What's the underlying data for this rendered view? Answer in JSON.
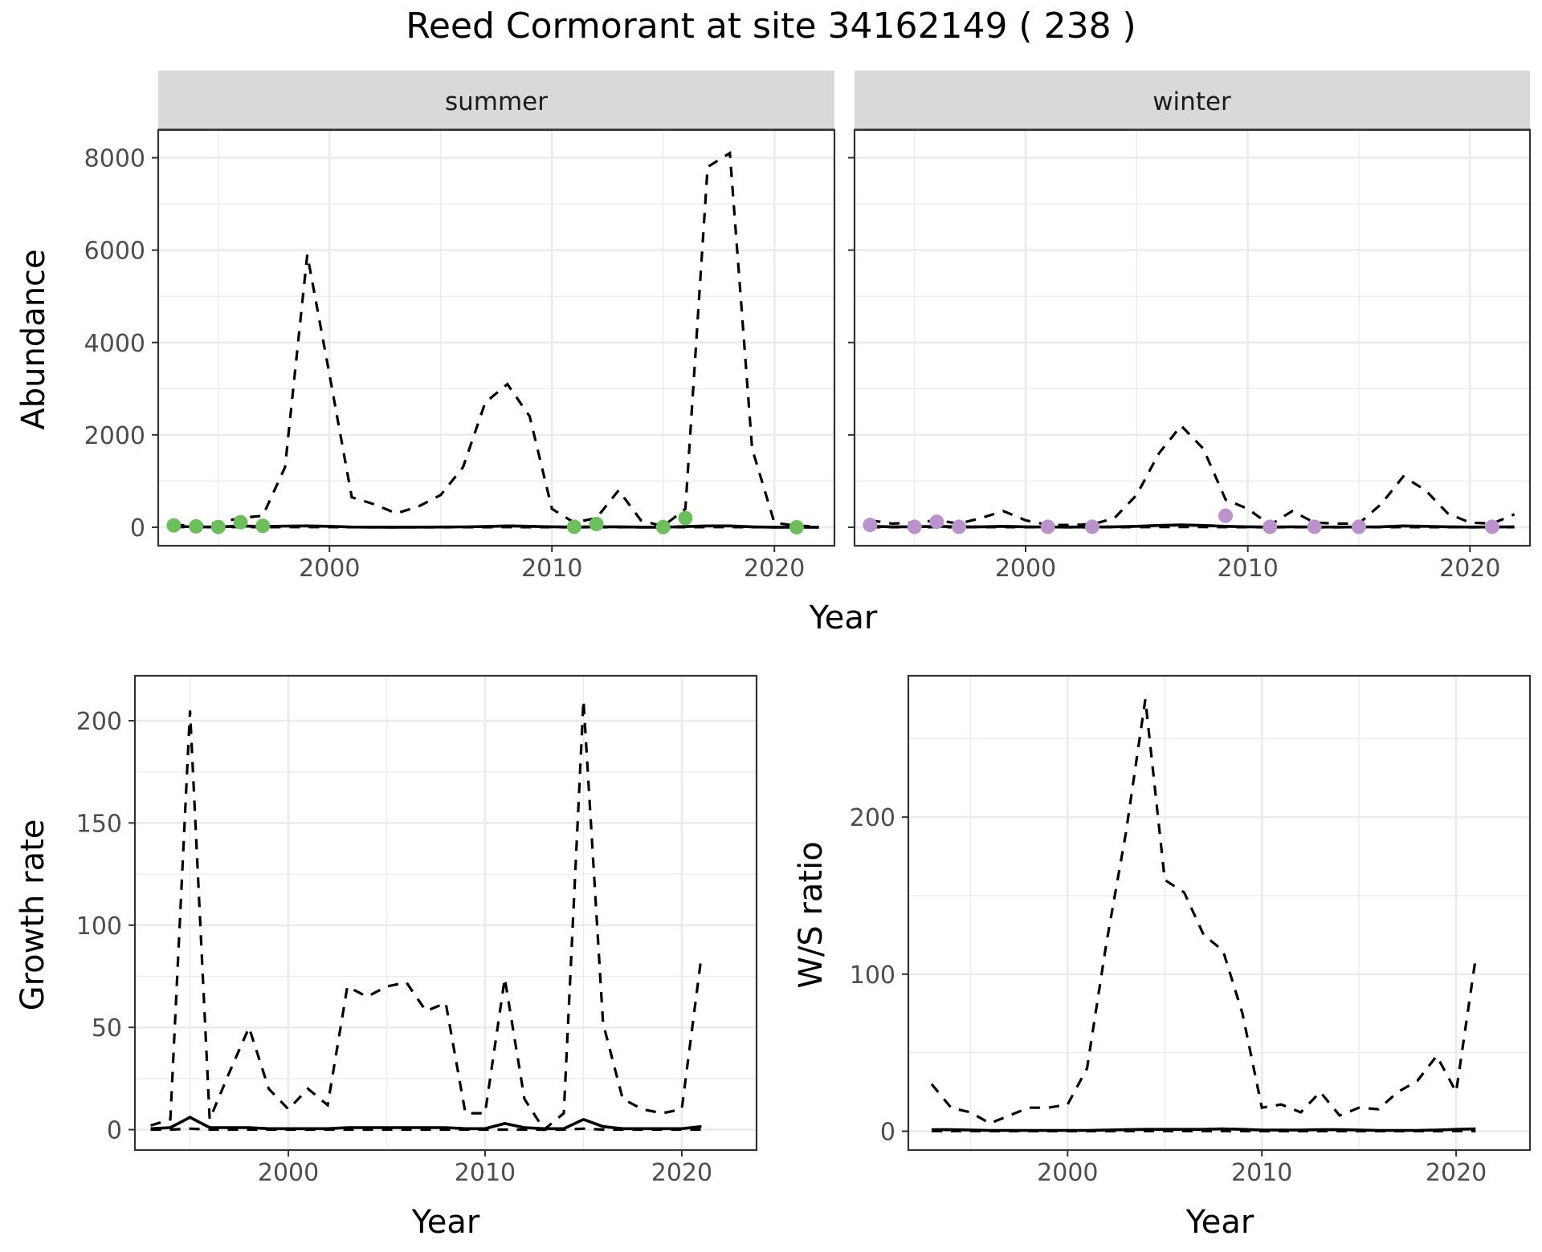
{
  "title": "Reed Cormorant at site 34162149 ( 238 )",
  "colors": {
    "summer_points": "#6cbf5b",
    "winter_points": "#bb92cb",
    "lines": "#000000"
  },
  "chart_data": [
    {
      "id": "summer",
      "type": "line",
      "facet": "summer",
      "xlabel": "Year",
      "ylabel": "Abundance",
      "xlim": [
        1992.3,
        2022.7
      ],
      "ylim": [
        -400,
        8600
      ],
      "xticks": [
        2000,
        2010,
        2020
      ],
      "xminor": [
        1995,
        2005,
        2015
      ],
      "yticks": [
        0,
        2000,
        4000,
        6000,
        8000
      ],
      "yminor": [
        1000,
        3000,
        5000,
        7000
      ],
      "grid": true,
      "legend": "none",
      "x": [
        1993,
        1994,
        1995,
        1996,
        1997,
        1998,
        1999,
        2000,
        2001,
        2002,
        2003,
        2004,
        2005,
        2006,
        2007,
        2008,
        2009,
        2010,
        2011,
        2012,
        2013,
        2014,
        2015,
        2016,
        2017,
        2018,
        2019,
        2020,
        2021,
        2022
      ],
      "series": [
        {
          "role": "upper",
          "style": "dashed",
          "values": [
            60,
            20,
            100,
            200,
            250,
            1300,
            5900,
            3300,
            650,
            500,
            300,
            450,
            700,
            1300,
            2700,
            3100,
            2400,
            400,
            100,
            200,
            800,
            150,
            20,
            400,
            7800,
            8100,
            1700,
            100,
            30,
            20
          ]
        },
        {
          "role": "mean",
          "style": "solid",
          "values": [
            20,
            8,
            5,
            30,
            15,
            25,
            30,
            20,
            5,
            3,
            2,
            3,
            4,
            8,
            15,
            30,
            20,
            10,
            5,
            10,
            10,
            3,
            2,
            15,
            30,
            30,
            10,
            2,
            1,
            1
          ]
        },
        {
          "role": "lower",
          "style": "dashed",
          "values": [
            5,
            2,
            1,
            5,
            2,
            3,
            3,
            3,
            1,
            0,
            0,
            0,
            0,
            1,
            2,
            3,
            2,
            1,
            0,
            1,
            1,
            0,
            0,
            2,
            3,
            3,
            1,
            0,
            0,
            0
          ]
        }
      ],
      "points": {
        "x": [
          1993,
          1994,
          1995,
          1996,
          1997,
          2011,
          2012,
          2015,
          2016,
          2021
        ],
        "y": [
          40,
          20,
          5,
          110,
          30,
          10,
          70,
          5,
          200,
          0
        ]
      }
    },
    {
      "id": "winter",
      "type": "line",
      "facet": "winter",
      "xlabel": "Year",
      "ylabel": "Abundance",
      "xlim": [
        1992.3,
        2022.7
      ],
      "ylim": [
        -400,
        8600
      ],
      "xticks": [
        2000,
        2010,
        2020
      ],
      "xminor": [
        1995,
        2005,
        2015
      ],
      "yticks": [
        0,
        2000,
        4000,
        6000,
        8000
      ],
      "yminor": [
        1000,
        3000,
        5000,
        7000
      ],
      "grid": true,
      "legend": "none",
      "x": [
        1993,
        1994,
        1995,
        1996,
        1997,
        1998,
        1999,
        2000,
        2001,
        2002,
        2003,
        2004,
        2005,
        2006,
        2007,
        2008,
        2009,
        2010,
        2011,
        2012,
        2013,
        2014,
        2015,
        2016,
        2017,
        2018,
        2019,
        2020,
        2021,
        2022
      ],
      "series": [
        {
          "role": "upper",
          "style": "dashed",
          "values": [
            150,
            80,
            100,
            150,
            80,
            200,
            350,
            150,
            50,
            50,
            60,
            200,
            700,
            1600,
            2200,
            1700,
            600,
            400,
            50,
            350,
            100,
            80,
            80,
            500,
            1100,
            800,
            300,
            100,
            80,
            280
          ]
        },
        {
          "role": "mean",
          "style": "solid",
          "values": [
            20,
            10,
            10,
            20,
            10,
            10,
            20,
            10,
            5,
            5,
            5,
            10,
            20,
            40,
            50,
            40,
            20,
            10,
            5,
            10,
            5,
            5,
            5,
            10,
            30,
            20,
            10,
            5,
            5,
            10
          ]
        },
        {
          "role": "lower",
          "style": "dashed",
          "values": [
            3,
            1,
            1,
            3,
            1,
            1,
            3,
            1,
            0,
            0,
            0,
            1,
            3,
            5,
            6,
            5,
            3,
            1,
            0,
            1,
            0,
            0,
            0,
            1,
            3,
            2,
            1,
            0,
            0,
            1
          ]
        }
      ],
      "points": {
        "x": [
          1993,
          1995,
          1996,
          1997,
          2001,
          2003,
          2009,
          2011,
          2013,
          2015,
          2021
        ],
        "y": [
          50,
          10,
          120,
          10,
          10,
          10,
          250,
          10,
          10,
          10,
          10
        ]
      }
    },
    {
      "id": "growth",
      "type": "line",
      "xlabel": "Year",
      "ylabel": "Growth rate",
      "xlim": [
        1992.2,
        2023.8
      ],
      "ylim": [
        -10,
        222
      ],
      "xticks": [
        2000,
        2010,
        2020
      ],
      "xminor": [
        1995,
        2005,
        2015
      ],
      "yticks": [
        0,
        50,
        100,
        150,
        200
      ],
      "yminor": [
        25,
        75,
        125,
        175
      ],
      "grid": true,
      "legend": "none",
      "x": [
        1993,
        1994,
        1995,
        1996,
        1997,
        1998,
        1999,
        2000,
        2001,
        2002,
        2003,
        2004,
        2005,
        2006,
        2007,
        2008,
        2009,
        2010,
        2011,
        2012,
        2013,
        2014,
        2015,
        2016,
        2017,
        2018,
        2019,
        2020,
        2021
      ],
      "series": [
        {
          "role": "upper",
          "style": "dashed",
          "values": [
            2,
            5,
            205,
            5,
            28,
            50,
            20,
            10,
            20,
            12,
            70,
            65,
            70,
            72,
            58,
            62,
            8,
            8,
            74,
            15,
            0,
            8,
            210,
            52,
            15,
            10,
            8,
            10,
            85
          ]
        },
        {
          "role": "mean",
          "style": "solid",
          "values": [
            0.5,
            1,
            6,
            1,
            1,
            1,
            0.5,
            0.5,
            0.5,
            0.5,
            1,
            1,
            1,
            1,
            1,
            1,
            0.5,
            0.5,
            3,
            1,
            0.5,
            0.5,
            5,
            1.5,
            0.5,
            0.5,
            0.5,
            0.5,
            1.5
          ]
        },
        {
          "role": "lower",
          "style": "dashed",
          "values": [
            0,
            0,
            0.5,
            0,
            0,
            0,
            0,
            0,
            0,
            0,
            0,
            0,
            0,
            0,
            0,
            0,
            0,
            0,
            0,
            0,
            0,
            0,
            0.5,
            0,
            0,
            0,
            0,
            0,
            0
          ]
        }
      ]
    },
    {
      "id": "ratio",
      "type": "line",
      "xlabel": "Year",
      "ylabel": "W/S ratio",
      "xlim": [
        1991.8,
        2023.8
      ],
      "ylim": [
        -12,
        290
      ],
      "xticks": [
        2000,
        2010,
        2020
      ],
      "xminor": [
        1995,
        2005,
        2015
      ],
      "yticks": [
        0,
        100,
        200
      ],
      "yminor": [
        50,
        150,
        250
      ],
      "grid": true,
      "legend": "none",
      "x": [
        1993,
        1994,
        1995,
        1996,
        1997,
        1998,
        1999,
        2000,
        2001,
        2002,
        2003,
        2004,
        2005,
        2006,
        2007,
        2008,
        2009,
        2010,
        2011,
        2012,
        2013,
        2014,
        2015,
        2016,
        2017,
        2018,
        2019,
        2020,
        2021
      ],
      "series": [
        {
          "role": "upper",
          "style": "dashed",
          "values": [
            30,
            15,
            12,
            5,
            10,
            15,
            15,
            17,
            40,
            120,
            190,
            275,
            160,
            152,
            125,
            115,
            75,
            15,
            17,
            12,
            25,
            10,
            15,
            14,
            25,
            32,
            48,
            25,
            110
          ]
        },
        {
          "role": "mean",
          "style": "solid",
          "values": [
            1,
            1,
            0.8,
            0.5,
            0.5,
            0.5,
            0.5,
            0.5,
            0.5,
            0.8,
            1,
            1.2,
            1.2,
            1.2,
            1.2,
            1.5,
            1.2,
            0.8,
            0.8,
            0.8,
            1,
            1,
            0.8,
            0.5,
            0.5,
            0.5,
            0.8,
            1.2,
            1.5
          ]
        },
        {
          "role": "lower",
          "style": "dashed",
          "values": [
            0.1,
            0.1,
            0.1,
            0.05,
            0.05,
            0.05,
            0.05,
            0.05,
            0.05,
            0.05,
            0.1,
            0.1,
            0.1,
            0.1,
            0.1,
            0.1,
            0.1,
            0.05,
            0.05,
            0.05,
            0.05,
            0.05,
            0.05,
            0.05,
            0.05,
            0.05,
            0.05,
            0.1,
            0.1
          ]
        }
      ]
    }
  ],
  "labels": {
    "strip_summer": "summer",
    "strip_winter": "winter",
    "top_xlabel": "Year",
    "top_ylabel": "Abundance",
    "growth_xlabel": "Year",
    "growth_ylabel": "Growth rate",
    "ratio_xlabel": "Year",
    "ratio_ylabel": "W/S ratio"
  }
}
